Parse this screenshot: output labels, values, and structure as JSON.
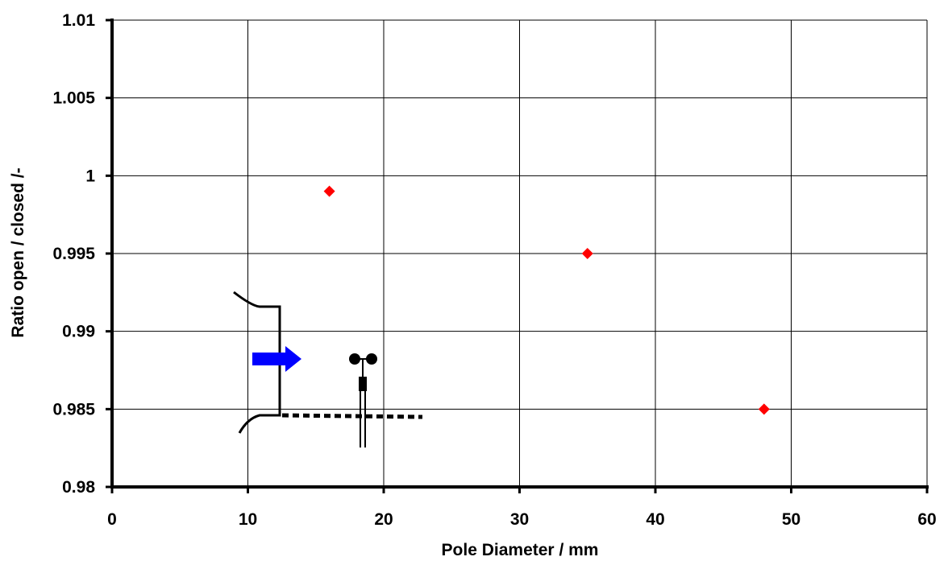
{
  "chart_data": {
    "type": "scatter",
    "title": "",
    "xlabel": "Pole Diameter  / mm",
    "ylabel": "Ratio open / closed  /-",
    "xlim": [
      0,
      60
    ],
    "ylim": [
      0.98,
      1.01
    ],
    "x_ticks": [
      0,
      10,
      20,
      30,
      40,
      50,
      60
    ],
    "y_ticks": [
      0.98,
      0.985,
      0.99,
      0.995,
      1,
      1.005,
      1.01
    ],
    "x_tick_labels": [
      "0",
      "10",
      "20",
      "30",
      "40",
      "50",
      "60"
    ],
    "y_tick_labels": [
      "0.98",
      "0.985",
      "0.99",
      "0.995",
      "1",
      "1.005",
      "1.01"
    ],
    "grid": true,
    "legend": "none",
    "series": [
      {
        "marker": "diamond",
        "color": "#ff0000",
        "points": [
          {
            "x": 16,
            "y": 0.999
          },
          {
            "x": 35,
            "y": 0.995
          },
          {
            "x": 48,
            "y": 0.985
          }
        ]
      }
    ],
    "inset_icons": [
      "duct-outline-icon",
      "flow-arrow-icon",
      "anemometer-icon"
    ],
    "inset_arrow_color": "#0000ff"
  }
}
